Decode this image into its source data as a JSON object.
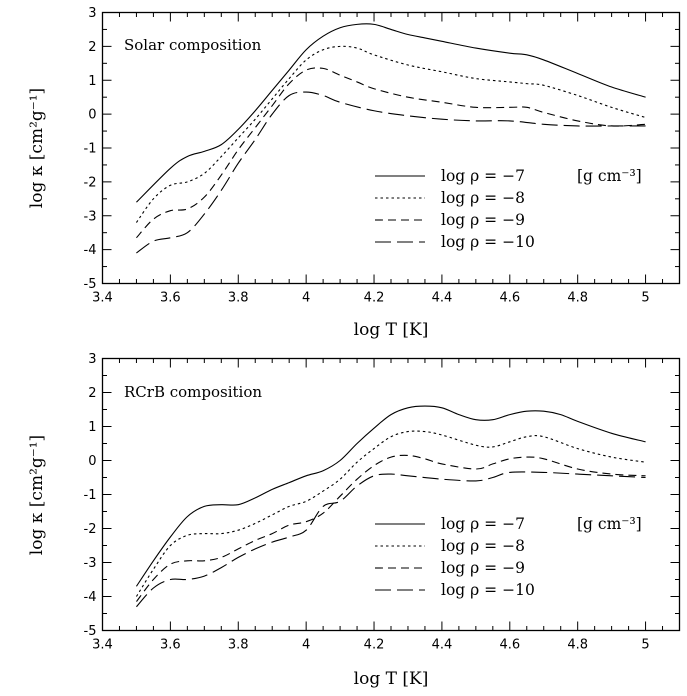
{
  "chart_data": [
    {
      "type": "line",
      "panel_label": "Solar composition",
      "xlabel": "log T [K]",
      "ylabel": "log κ [cm²g⁻¹]",
      "xlim": [
        3.4,
        5.1
      ],
      "ylim": [
        -5,
        3
      ],
      "x_ticks": [
        "3.4",
        "3.6",
        "3.8",
        "4",
        "4.2",
        "4.4",
        "4.6",
        "4.8",
        "5"
      ],
      "y_ticks": [
        "-5",
        "-4",
        "-3",
        "-2",
        "-1",
        "0",
        "1",
        "2",
        "3"
      ],
      "legend_unit": "[g cm⁻³]",
      "legend_position": "bottom-right",
      "series": [
        {
          "name": "log ρ = −7",
          "dash": "solid",
          "x": [
            3.5,
            3.6,
            3.65,
            3.7,
            3.75,
            3.8,
            3.85,
            3.9,
            3.95,
            4.0,
            4.05,
            4.1,
            4.15,
            4.2,
            4.25,
            4.3,
            4.35,
            4.4,
            4.5,
            4.6,
            4.65,
            4.7,
            4.8,
            4.9,
            5.0
          ],
          "y": [
            -2.6,
            -1.6,
            -1.25,
            -1.1,
            -0.9,
            -0.45,
            0.1,
            0.7,
            1.3,
            1.9,
            2.3,
            2.55,
            2.65,
            2.65,
            2.5,
            2.35,
            2.25,
            2.15,
            1.95,
            1.8,
            1.75,
            1.6,
            1.2,
            0.8,
            0.5
          ]
        },
        {
          "name": "log ρ = −8",
          "dash": "dotted",
          "x": [
            3.5,
            3.55,
            3.6,
            3.65,
            3.7,
            3.75,
            3.8,
            3.85,
            3.9,
            3.95,
            4.0,
            4.05,
            4.1,
            4.15,
            4.2,
            4.3,
            4.4,
            4.5,
            4.6,
            4.65,
            4.7,
            4.8,
            4.9,
            5.0
          ],
          "y": [
            -3.2,
            -2.5,
            -2.1,
            -2.0,
            -1.75,
            -1.25,
            -0.7,
            -0.15,
            0.45,
            1.05,
            1.6,
            1.9,
            2.0,
            1.95,
            1.75,
            1.45,
            1.25,
            1.05,
            0.95,
            0.9,
            0.85,
            0.55,
            0.2,
            -0.1
          ]
        },
        {
          "name": "log ρ = −9",
          "dash": "dashed",
          "x": [
            3.5,
            3.55,
            3.6,
            3.65,
            3.7,
            3.75,
            3.8,
            3.85,
            3.9,
            3.95,
            4.0,
            4.05,
            4.1,
            4.15,
            4.2,
            4.3,
            4.4,
            4.5,
            4.6,
            4.65,
            4.7,
            4.8,
            4.9,
            5.0
          ],
          "y": [
            -3.65,
            -3.1,
            -2.85,
            -2.8,
            -2.45,
            -1.8,
            -1.05,
            -0.4,
            0.25,
            0.9,
            1.3,
            1.35,
            1.15,
            0.95,
            0.75,
            0.5,
            0.35,
            0.2,
            0.2,
            0.2,
            0.05,
            -0.2,
            -0.35,
            -0.3
          ]
        },
        {
          "name": "log ρ = −10",
          "dash": "longdash",
          "x": [
            3.5,
            3.55,
            3.6,
            3.65,
            3.7,
            3.75,
            3.8,
            3.85,
            3.9,
            3.95,
            4.0,
            4.05,
            4.1,
            4.2,
            4.3,
            4.4,
            4.5,
            4.6,
            4.7,
            4.8,
            4.9,
            5.0
          ],
          "y": [
            -4.1,
            -3.75,
            -3.65,
            -3.5,
            -2.95,
            -2.25,
            -1.45,
            -0.75,
            0.0,
            0.55,
            0.65,
            0.55,
            0.35,
            0.1,
            -0.05,
            -0.15,
            -0.2,
            -0.2,
            -0.3,
            -0.35,
            -0.35,
            -0.35
          ]
        }
      ]
    },
    {
      "type": "line",
      "panel_label": "RCrB composition",
      "xlabel": "log T [K]",
      "ylabel": "log κ [cm²g⁻¹]",
      "xlim": [
        3.4,
        5.1
      ],
      "ylim": [
        -5,
        3
      ],
      "x_ticks": [
        "3.4",
        "3.6",
        "3.8",
        "4",
        "4.2",
        "4.4",
        "4.6",
        "4.8",
        "5"
      ],
      "y_ticks": [
        "-5",
        "-4",
        "-3",
        "-2",
        "-1",
        "0",
        "1",
        "2",
        "3"
      ],
      "legend_unit": "[g cm⁻³]",
      "legend_position": "bottom-right",
      "series": [
        {
          "name": "log ρ = −7",
          "dash": "solid",
          "x": [
            3.5,
            3.55,
            3.6,
            3.65,
            3.7,
            3.75,
            3.8,
            3.85,
            3.9,
            3.95,
            4.0,
            4.05,
            4.1,
            4.15,
            4.2,
            4.25,
            4.3,
            4.35,
            4.4,
            4.45,
            4.5,
            4.55,
            4.6,
            4.65,
            4.7,
            4.75,
            4.8,
            4.9,
            5.0
          ],
          "y": [
            -3.7,
            -2.95,
            -2.25,
            -1.65,
            -1.35,
            -1.3,
            -1.3,
            -1.1,
            -0.85,
            -0.65,
            -0.45,
            -0.3,
            0.0,
            0.5,
            0.95,
            1.35,
            1.55,
            1.6,
            1.55,
            1.35,
            1.2,
            1.2,
            1.35,
            1.45,
            1.45,
            1.35,
            1.15,
            0.8,
            0.55
          ]
        },
        {
          "name": "log ρ = −8",
          "dash": "dotted",
          "x": [
            3.5,
            3.55,
            3.6,
            3.65,
            3.7,
            3.75,
            3.8,
            3.85,
            3.9,
            3.95,
            4.0,
            4.05,
            4.1,
            4.15,
            4.2,
            4.25,
            4.3,
            4.35,
            4.4,
            4.5,
            4.55,
            4.6,
            4.65,
            4.7,
            4.8,
            4.9,
            5.0
          ],
          "y": [
            -4.0,
            -3.2,
            -2.5,
            -2.2,
            -2.15,
            -2.15,
            -2.05,
            -1.85,
            -1.6,
            -1.35,
            -1.2,
            -0.9,
            -0.55,
            -0.05,
            0.35,
            0.7,
            0.85,
            0.85,
            0.75,
            0.45,
            0.4,
            0.55,
            0.7,
            0.7,
            0.35,
            0.1,
            -0.05
          ]
        },
        {
          "name": "log ρ = −9",
          "dash": "dashed",
          "x": [
            3.5,
            3.55,
            3.6,
            3.65,
            3.7,
            3.75,
            3.8,
            3.85,
            3.9,
            3.95,
            4.0,
            4.05,
            4.1,
            4.15,
            4.2,
            4.25,
            4.3,
            4.35,
            4.4,
            4.5,
            4.55,
            4.6,
            4.65,
            4.7,
            4.8,
            4.9,
            5.0
          ],
          "y": [
            -4.15,
            -3.5,
            -3.05,
            -2.95,
            -2.95,
            -2.85,
            -2.6,
            -2.35,
            -2.15,
            -1.9,
            -1.8,
            -1.55,
            -1.05,
            -0.55,
            -0.15,
            0.1,
            0.15,
            0.05,
            -0.1,
            -0.25,
            -0.1,
            0.05,
            0.1,
            0.05,
            -0.25,
            -0.4,
            -0.45
          ]
        },
        {
          "name": "log ρ = −10",
          "dash": "longdash",
          "x": [
            3.5,
            3.55,
            3.6,
            3.65,
            3.7,
            3.75,
            3.8,
            3.85,
            3.9,
            3.95,
            4.0,
            4.05,
            4.1,
            4.15,
            4.2,
            4.25,
            4.3,
            4.4,
            4.5,
            4.55,
            4.6,
            4.7,
            4.8,
            4.9,
            5.0
          ],
          "y": [
            -4.3,
            -3.75,
            -3.5,
            -3.5,
            -3.4,
            -3.15,
            -2.85,
            -2.6,
            -2.4,
            -2.25,
            -2.05,
            -1.35,
            -1.2,
            -0.75,
            -0.45,
            -0.4,
            -0.45,
            -0.55,
            -0.6,
            -0.5,
            -0.35,
            -0.35,
            -0.4,
            -0.45,
            -0.5
          ]
        }
      ]
    }
  ]
}
